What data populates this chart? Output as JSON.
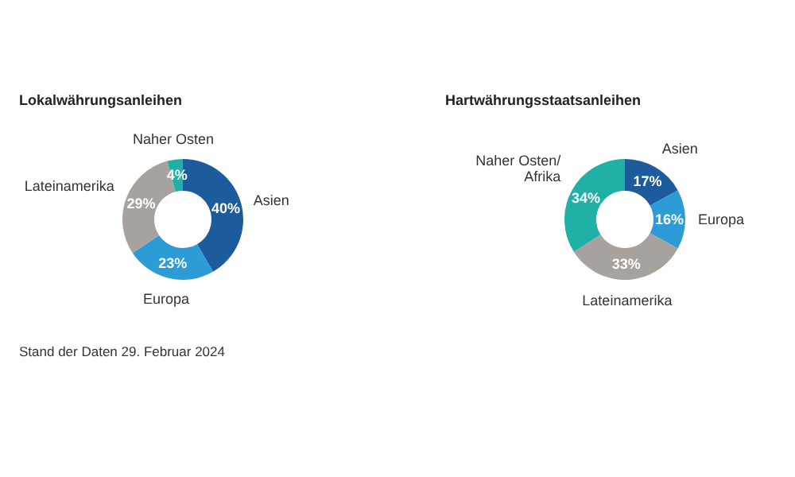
{
  "chart_data": [
    {
      "type": "donut",
      "title": "Lokalwährungsanleihen",
      "categories": [
        "Asien",
        "Europa",
        "Lateinamerika",
        "Naher Osten"
      ],
      "values": [
        40,
        23,
        29,
        4
      ],
      "value_labels": [
        "40%",
        "23%",
        "29%",
        "4%"
      ],
      "colors": [
        "#1c5b9c",
        "#2c9bd6",
        "#a7a29e",
        "#20b0a5"
      ],
      "annotations": [
        "Stand der Daten 29. Februar 2024"
      ]
    },
    {
      "type": "donut",
      "title": "Hartwährungsstaatsanleihen",
      "categories": [
        "Asien",
        "Europa",
        "Lateinamerika",
        "Naher Osten/Afrika"
      ],
      "values": [
        17,
        16,
        33,
        34
      ],
      "value_labels": [
        "17%",
        "16%",
        "33%",
        "34%"
      ],
      "colors": [
        "#1c5b9c",
        "#2c9bd6",
        "#a7a29e",
        "#20b0a5"
      ]
    }
  ]
}
